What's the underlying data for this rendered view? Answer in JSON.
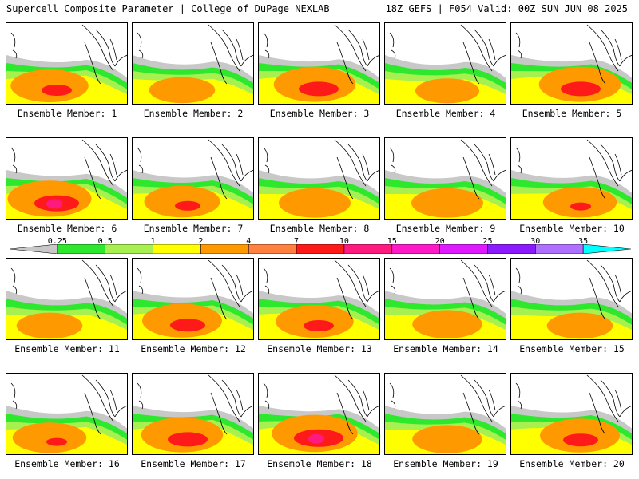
{
  "header": {
    "title": "Supercell Composite Parameter | College of DuPage NEXLAB",
    "run": "18Z GEFS | F054 Valid: 00Z SUN JUN 08 2025"
  },
  "colorbar": {
    "ticks": [
      "0.25",
      "0.5",
      "1",
      "2",
      "4",
      "7",
      "10",
      "15",
      "20",
      "25",
      "30",
      "35"
    ],
    "colors": [
      "#c8c8c8",
      "#2ee82e",
      "#a8f050",
      "#ffff00",
      "#ff9900",
      "#ff8040",
      "#ff1a1a",
      "#ff1a80",
      "#ff1ac8",
      "#e01aff",
      "#8c1aff",
      "#b070ff",
      "#00ffff"
    ]
  },
  "members": [
    {
      "label": "Ensemble Member: 1",
      "intensity": 0.75
    },
    {
      "label": "Ensemble Member: 2",
      "intensity": 0.45
    },
    {
      "label": "Ensemble Member: 3",
      "intensity": 0.85
    },
    {
      "label": "Ensemble Member: 4",
      "intensity": 0.4
    },
    {
      "label": "Ensemble Member: 5",
      "intensity": 0.85
    },
    {
      "label": "Ensemble Member: 6",
      "intensity": 0.9
    },
    {
      "label": "Ensemble Member: 7",
      "intensity": 0.7
    },
    {
      "label": "Ensemble Member: 8",
      "intensity": 0.6
    },
    {
      "label": "Ensemble Member: 9",
      "intensity": 0.6
    },
    {
      "label": "Ensemble Member: 10",
      "intensity": 0.65
    },
    {
      "label": "Ensemble Member: 11",
      "intensity": 0.45
    },
    {
      "label": "Ensemble Member: 12",
      "intensity": 0.8
    },
    {
      "label": "Ensemble Member: 13",
      "intensity": 0.75
    },
    {
      "label": "Ensemble Member: 14",
      "intensity": 0.55
    },
    {
      "label": "Ensemble Member: 15",
      "intensity": 0.45
    },
    {
      "label": "Ensemble Member: 16",
      "intensity": 0.65
    },
    {
      "label": "Ensemble Member: 17",
      "intensity": 0.85
    },
    {
      "label": "Ensemble Member: 18",
      "intensity": 0.95
    },
    {
      "label": "Ensemble Member: 19",
      "intensity": 0.55
    },
    {
      "label": "Ensemble Member: 20",
      "intensity": 0.8
    }
  ]
}
